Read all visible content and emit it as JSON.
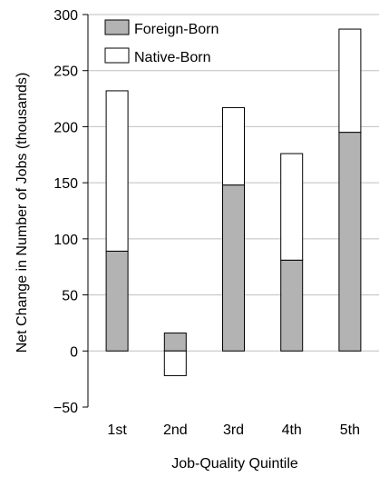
{
  "colors": {
    "foreign": "#b3b3b3",
    "native": "#ffffff",
    "stroke": "#000000",
    "grid": "#bfbfbf"
  },
  "chart_data": {
    "type": "bar",
    "stacked": true,
    "categories": [
      "1st",
      "2nd",
      "3rd",
      "4th",
      "5th"
    ],
    "series": [
      {
        "name": "Foreign-Born",
        "values": [
          89,
          16,
          148,
          81,
          195
        ]
      },
      {
        "name": "Native-Born",
        "values": [
          143,
          -22,
          69,
          95,
          92
        ]
      }
    ],
    "xlabel": "Job-Quality Quintile",
    "ylabel": "Net Change in Number of Jobs (thousands)",
    "ylim": [
      -50,
      300
    ],
    "yticks": [
      -50,
      0,
      50,
      100,
      150,
      200,
      250,
      300
    ],
    "ytick_labels": [
      "−50",
      "0",
      "50",
      "100",
      "150",
      "200",
      "250",
      "300"
    ],
    "grid": "horizontal",
    "legend_position": "top-left"
  }
}
